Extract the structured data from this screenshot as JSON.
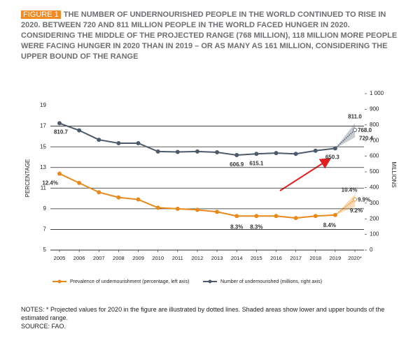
{
  "chart_data": {
    "type": "line",
    "figure_label": "FIGURE 1",
    "title": "THE NUMBER OF UNDERNOURISHED PEOPLE IN THE WORLD CONTINUED TO RISE IN 2020. BETWEEN 720 AND 811 MILLION PEOPLE IN THE WORLD FACED HUNGER IN 2020. CONSIDERING THE MIDDLE OF THE PROJECTED RANGE (768 MILLION), 118 MILLION MORE PEOPLE WERE FACING HUNGER IN 2020 THAN IN 2019 – OR AS MANY AS 161 MILLION, CONSIDERING THE UPPER BOUND OF THE RANGE",
    "y_label": "PERCENTAGE",
    "y2_label": "MILLIONS",
    "categories": [
      "2005",
      "2006",
      "2007",
      "2008",
      "2009",
      "2010",
      "2011",
      "2012",
      "2013",
      "2014",
      "2015",
      "2016",
      "2017",
      "2018",
      "2019",
      "2020*"
    ],
    "ylim": [
      5,
      19
    ],
    "yticks": [
      5,
      7,
      9,
      11,
      13,
      15,
      17,
      19
    ],
    "y2lim": [
      0,
      1000
    ],
    "y2ticks": [
      0,
      100,
      200,
      300,
      400,
      500,
      600,
      700,
      800,
      900,
      {
        "value": 1000,
        "label": "1 000"
      }
    ],
    "grid": true,
    "series": [
      {
        "name": "Prevalence of undernourishment (percentage, left axis)",
        "color": "#e8891c",
        "axis": "y",
        "values": [
          12.4,
          11.5,
          10.6,
          10.1,
          9.9,
          9.1,
          9.0,
          8.9,
          8.7,
          8.3,
          8.3,
          8.3,
          8.1,
          8.3,
          8.4,
          9.9
        ],
        "value_labels": [
          "12.4%",
          null,
          null,
          null,
          null,
          null,
          null,
          null,
          null,
          "8.3%",
          "8.3%",
          null,
          null,
          null,
          "8.4%",
          "9.9%"
        ],
        "range_low": 9.2,
        "range_high": 10.4,
        "range_labels": [
          "9.2%",
          "10.4%"
        ]
      },
      {
        "name": "Number of undernourished (millions, right axis)",
        "color": "#4d5a6b",
        "axis": "y2",
        "values": [
          810.7,
          765,
          705,
          683,
          683,
          630,
          627,
          630,
          625,
          606.9,
          615.1,
          620,
          615,
          635,
          650.3,
          768.0
        ],
        "value_labels": [
          "810.7",
          null,
          null,
          null,
          null,
          null,
          null,
          null,
          null,
          "606.9",
          "615.1",
          null,
          null,
          null,
          "650.3",
          "768.0"
        ],
        "range_low": 720.4,
        "range_high": 811.0,
        "range_labels": [
          "720.4",
          "811.0"
        ]
      }
    ],
    "notes": "NOTES: * Projected values for 2020 in the figure are illustrated by dotted lines. Shaded areas show lower and upper bounds of the estimated range.",
    "source": "SOURCE: FAO."
  }
}
